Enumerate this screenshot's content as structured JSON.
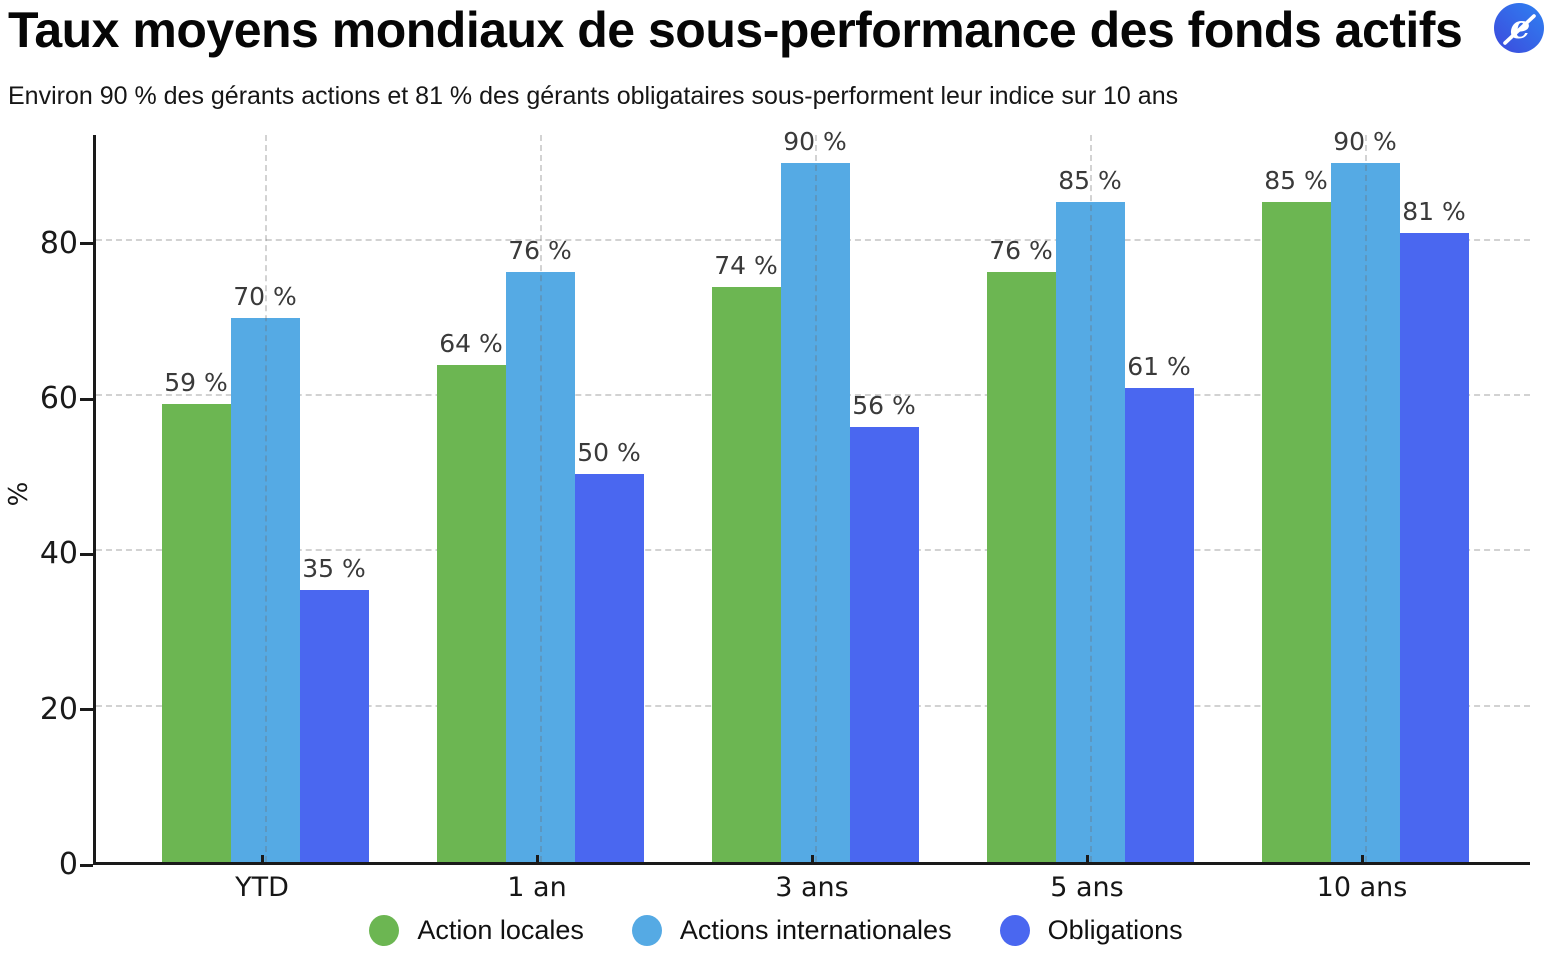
{
  "header": {
    "title": "Taux moyens mondiaux de sous-performance des fonds actifs",
    "subtitle": "Environ 90 % des gérants actions et 81 % des gérants obligataires sous-performent leur indice sur 10 ans",
    "logo_icon": "e-slash-logo"
  },
  "chart_data": {
    "type": "bar",
    "title": "Taux moyens mondiaux de sous-performance des fonds actifs",
    "categories": [
      "YTD",
      "1 an",
      "3 ans",
      "5 ans",
      "10 ans"
    ],
    "series": [
      {
        "name": "Action locales",
        "color": "#6CB652",
        "values": [
          59,
          64,
          74,
          76,
          85
        ]
      },
      {
        "name": "Actions internationales",
        "color": "#55AAE4",
        "values": [
          70,
          76,
          90,
          85,
          90
        ]
      },
      {
        "name": "Obligations",
        "color": "#4A67F0",
        "values": [
          35,
          50,
          56,
          61,
          81
        ]
      }
    ],
    "xlabel": "",
    "ylabel": "%",
    "yticks": [
      0,
      20,
      40,
      60,
      80
    ],
    "ylim": [
      0,
      94
    ],
    "value_suffix": " %",
    "grid": true,
    "legend_position": "bottom",
    "colors": {
      "grid": "#d2d2d2",
      "axis": "#1a1a1a",
      "value_label": "#3a3a3a",
      "tick_label": "#161616"
    }
  }
}
